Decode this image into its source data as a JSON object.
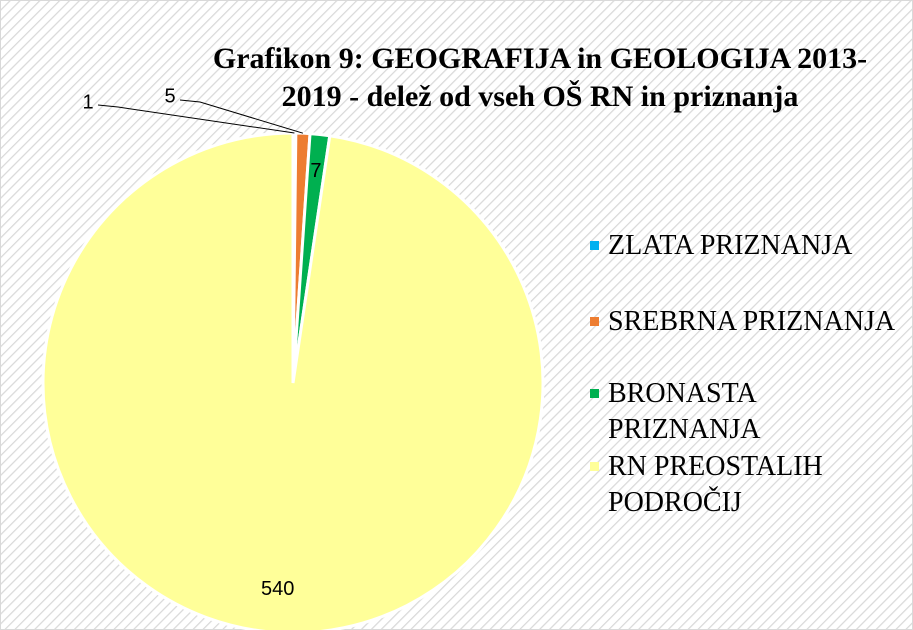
{
  "chart_data": {
    "type": "pie",
    "title": "Grafikon 9: GEOGRAFIJA in GEOLOGIJA 2013-2019 - delež od vseh OŠ RN in priznanja",
    "categories": [
      "ZLATA PRIZNANJA",
      "SREBRNA PRIZNANJA",
      "BRONASTA PRIZNANJA",
      "RN PREOSTALIH PODROČIJ"
    ],
    "values": [
      1,
      5,
      7,
      540
    ],
    "colors": [
      "#00b0f0",
      "#ed7d31",
      "#00b050",
      "#ffff99"
    ],
    "legend": "right"
  }
}
